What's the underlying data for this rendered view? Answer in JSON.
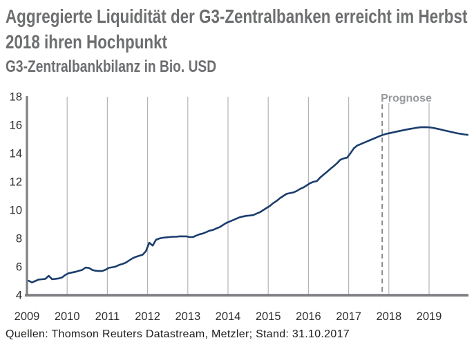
{
  "header": {
    "title": "Aggregierte Liquidität der G3-Zentralbanken erreicht im Herbst 2018 ihren Hochpunkt",
    "subtitle": "G3-Zentralbankbilanz in Bio. USD"
  },
  "footer": {
    "source": "Quellen: Thomson Reuters Datastream, Metzler; Stand: 31.10.2017"
  },
  "colors": {
    "title_gray": "#6d6e70",
    "line_navy": "#1b3d6e",
    "gridline": "#b4b5b7",
    "axis": "#7d7f82",
    "forecast_line": "#85878a",
    "forecast_label": "#97999c",
    "tick_text": "#2e2e2e"
  },
  "chart_data": {
    "type": "line",
    "title": "Aggregierte Liquidität der G3-Zentralbanken erreicht im Herbst 2018 ihren Hochpunkt",
    "ylabel": "G3-Zentralbankbilanz in Bio. USD",
    "unit": "Bio. USD",
    "frequency": "monthly",
    "x_start_year": 2009,
    "xlim": [
      2009,
      2019.98
    ],
    "ylim": [
      4,
      18
    ],
    "x_ticks": [
      2009,
      2010,
      2011,
      2012,
      2013,
      2014,
      2015,
      2016,
      2017,
      2018,
      2019
    ],
    "y_ticks": [
      4,
      6,
      8,
      10,
      12,
      14,
      16,
      18
    ],
    "grid": "vertical-only",
    "legend": "none",
    "forecast": {
      "label": "Prognose",
      "start_x": 2017.833
    },
    "series": [
      {
        "name": "G3-Zentralbankbilanz in Bio. USD",
        "values": [
          5.02,
          4.9,
          5.0,
          5.1,
          5.12,
          5.15,
          5.36,
          5.12,
          5.15,
          5.18,
          5.25,
          5.44,
          5.55,
          5.6,
          5.65,
          5.72,
          5.78,
          5.95,
          5.92,
          5.78,
          5.72,
          5.7,
          5.7,
          5.8,
          5.93,
          5.97,
          6.02,
          6.13,
          6.2,
          6.3,
          6.45,
          6.6,
          6.7,
          6.78,
          6.85,
          7.1,
          7.7,
          7.5,
          7.9,
          8.0,
          8.05,
          8.08,
          8.1,
          8.12,
          8.12,
          8.15,
          8.15,
          8.15,
          8.1,
          8.1,
          8.2,
          8.3,
          8.35,
          8.45,
          8.55,
          8.6,
          8.7,
          8.8,
          8.95,
          9.1,
          9.2,
          9.3,
          9.4,
          9.5,
          9.55,
          9.6,
          9.62,
          9.65,
          9.75,
          9.85,
          10.0,
          10.15,
          10.3,
          10.5,
          10.65,
          10.85,
          11.0,
          11.15,
          11.2,
          11.25,
          11.35,
          11.5,
          11.6,
          11.75,
          11.9,
          12.0,
          12.05,
          12.3,
          12.5,
          12.7,
          12.9,
          13.1,
          13.3,
          13.55,
          13.65,
          13.7,
          14.0,
          14.35,
          14.55,
          14.65,
          14.75,
          14.85,
          14.95,
          15.05,
          15.15,
          15.25,
          15.33,
          15.4,
          15.45,
          15.5,
          15.55,
          15.6,
          15.65,
          15.7,
          15.74,
          15.78,
          15.82,
          15.85,
          15.86,
          15.85,
          15.83,
          15.79,
          15.74,
          15.69,
          15.63,
          15.58,
          15.52,
          15.47,
          15.42,
          15.38,
          15.34,
          15.31
        ]
      }
    ]
  }
}
